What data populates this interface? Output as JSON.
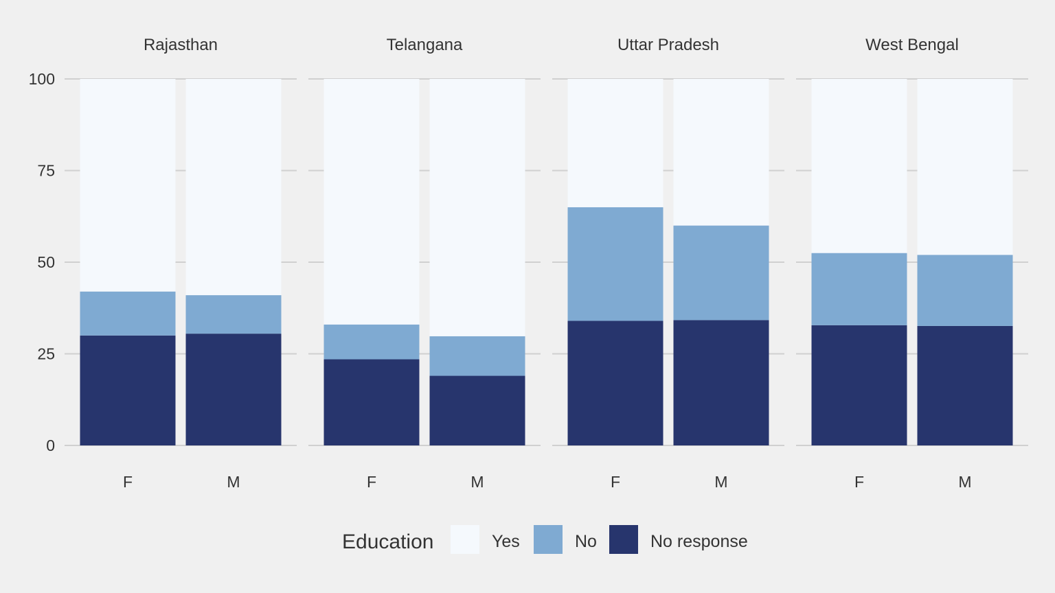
{
  "chart_data": {
    "type": "bar",
    "stacked": true,
    "facets": [
      {
        "name": "Rajasthan",
        "categories": [
          "F",
          "M"
        ],
        "series": [
          {
            "name": "No response",
            "values": [
              30.0,
              30.5
            ]
          },
          {
            "name": "No",
            "values": [
              12.0,
              10.5
            ]
          },
          {
            "name": "Yes",
            "values": [
              58.0,
              59.0
            ]
          }
        ]
      },
      {
        "name": "Telangana",
        "categories": [
          "F",
          "M"
        ],
        "series": [
          {
            "name": "No response",
            "values": [
              23.5,
              19.0
            ]
          },
          {
            "name": "No",
            "values": [
              9.5,
              10.8
            ]
          },
          {
            "name": "Yes",
            "values": [
              67.0,
              70.2
            ]
          }
        ]
      },
      {
        "name": "Uttar Pradesh",
        "categories": [
          "F",
          "M"
        ],
        "series": [
          {
            "name": "No response",
            "values": [
              34.0,
              34.2
            ]
          },
          {
            "name": "No",
            "values": [
              31.0,
              25.8
            ]
          },
          {
            "name": "Yes",
            "values": [
              35.0,
              40.0
            ]
          }
        ]
      },
      {
        "name": "West Bengal",
        "categories": [
          "F",
          "M"
        ],
        "series": [
          {
            "name": "No response",
            "values": [
              32.8,
              32.6
            ]
          },
          {
            "name": "No",
            "values": [
              19.7,
              19.4
            ]
          },
          {
            "name": "Yes",
            "values": [
              47.5,
              48.0
            ]
          }
        ]
      }
    ],
    "y_ticks": [
      0,
      25,
      50,
      75,
      100
    ],
    "ylim": [
      0,
      100
    ],
    "grid": true,
    "legend": {
      "title": "Education",
      "position": "bottom",
      "entries": [
        "Yes",
        "No",
        "No response"
      ]
    },
    "colors": {
      "Yes": "#f5f9fd",
      "No": "#7faad2",
      "No response": "#27356d",
      "grid": "#d0d0d0",
      "background": "#f0f0f0"
    }
  }
}
